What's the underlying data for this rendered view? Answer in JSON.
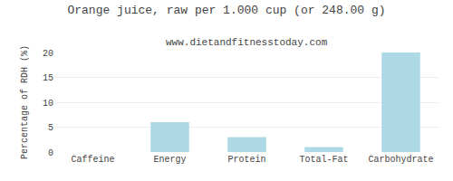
{
  "chart_data": {
    "type": "bar",
    "title": "Orange juice, raw per 1.000 cup (or 248.00 g)",
    "subtitle": "www.dietandfitnesstoday.com",
    "categories": [
      "Caffeine",
      "Energy",
      "Protein",
      "Total-Fat",
      "Carbohydrate"
    ],
    "values": [
      0,
      6,
      3,
      1,
      20
    ],
    "color": "#add8e6",
    "ylabel": "Percentage of RDH (%)",
    "ylim": [
      0,
      20
    ],
    "yticks": [
      0,
      5,
      10,
      15,
      20
    ],
    "grid": true
  }
}
